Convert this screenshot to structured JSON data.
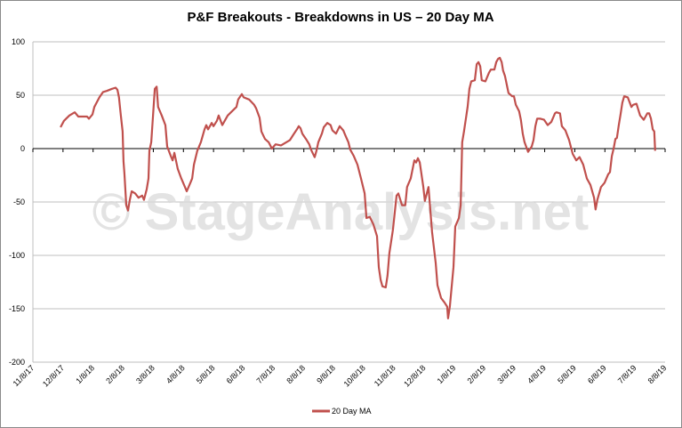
{
  "chart_data": {
    "type": "line",
    "title": "P&F Breakouts - Breakdowns in US – 20 Day MA",
    "xlabel": "",
    "ylabel": "",
    "ylim": [
      -200,
      100
    ],
    "yticks": [
      100,
      50,
      0,
      -50,
      -100,
      -150,
      -200
    ],
    "ytick_labels": [
      "100",
      "50",
      "0",
      "-50",
      "-100",
      "-150",
      "-200"
    ],
    "xtick_labels": [
      "11/8/17",
      "12/8/17",
      "1/8/18",
      "2/8/18",
      "3/8/18",
      "4/8/18",
      "5/8/18",
      "6/8/18",
      "7/8/18",
      "8/8/18",
      "9/8/18",
      "10/8/18",
      "11/8/18",
      "12/8/18",
      "1/8/19",
      "2/8/19",
      "3/8/19",
      "4/8/19",
      "5/8/19",
      "6/8/19",
      "7/8/19",
      "8/8/19"
    ],
    "x_unit": "months since 11/8/17",
    "grid": true,
    "legend_position": "bottom",
    "series": [
      {
        "name": "20 Day MA",
        "color": "#c0504d",
        "points": [
          [
            0.92,
            20
          ],
          [
            1.03,
            26
          ],
          [
            1.21,
            31
          ],
          [
            1.39,
            34
          ],
          [
            1.51,
            30
          ],
          [
            1.8,
            30
          ],
          [
            1.86,
            28
          ],
          [
            1.98,
            32
          ],
          [
            2.04,
            39
          ],
          [
            2.21,
            48
          ],
          [
            2.33,
            53
          ],
          [
            2.45,
            54
          ],
          [
            2.63,
            56
          ],
          [
            2.75,
            57
          ],
          [
            2.81,
            55
          ],
          [
            2.86,
            48
          ],
          [
            2.92,
            31
          ],
          [
            2.98,
            16
          ],
          [
            3.01,
            -12
          ],
          [
            3.04,
            -23
          ],
          [
            3.1,
            -53
          ],
          [
            3.16,
            -58
          ],
          [
            3.22,
            -48
          ],
          [
            3.28,
            -40
          ],
          [
            3.4,
            -42
          ],
          [
            3.51,
            -46
          ],
          [
            3.63,
            -44
          ],
          [
            3.69,
            -48
          ],
          [
            3.78,
            -38
          ],
          [
            3.84,
            -28
          ],
          [
            3.87,
            -2
          ],
          [
            3.93,
            6
          ],
          [
            3.99,
            31
          ],
          [
            4.05,
            56
          ],
          [
            4.11,
            58
          ],
          [
            4.16,
            39
          ],
          [
            4.28,
            31
          ],
          [
            4.4,
            22
          ],
          [
            4.46,
            2
          ],
          [
            4.58,
            -7
          ],
          [
            4.64,
            -11
          ],
          [
            4.7,
            -4
          ],
          [
            4.81,
            -19
          ],
          [
            4.93,
            -28
          ],
          [
            5.05,
            -36
          ],
          [
            5.11,
            -40
          ],
          [
            5.23,
            -32
          ],
          [
            5.29,
            -28
          ],
          [
            5.35,
            -15
          ],
          [
            5.46,
            -2
          ],
          [
            5.58,
            6
          ],
          [
            5.7,
            18
          ],
          [
            5.76,
            22
          ],
          [
            5.82,
            18
          ],
          [
            5.94,
            24
          ],
          [
            6.0,
            21
          ],
          [
            6.11,
            26
          ],
          [
            6.17,
            31
          ],
          [
            6.29,
            22
          ],
          [
            6.47,
            31
          ],
          [
            6.65,
            36
          ],
          [
            6.76,
            39
          ],
          [
            6.82,
            46
          ],
          [
            6.94,
            51
          ],
          [
            7.0,
            48
          ],
          [
            7.18,
            46
          ],
          [
            7.35,
            41
          ],
          [
            7.41,
            38
          ],
          [
            7.53,
            29
          ],
          [
            7.59,
            16
          ],
          [
            7.71,
            9
          ],
          [
            7.83,
            6
          ],
          [
            7.94,
            0
          ],
          [
            8.06,
            4
          ],
          [
            8.24,
            3
          ],
          [
            8.42,
            6
          ],
          [
            8.54,
            8
          ],
          [
            8.65,
            13
          ],
          [
            8.77,
            18
          ],
          [
            8.83,
            21
          ],
          [
            8.89,
            19
          ],
          [
            8.95,
            14
          ],
          [
            9.07,
            9
          ],
          [
            9.18,
            4
          ],
          [
            9.24,
            -1
          ],
          [
            9.36,
            -8
          ],
          [
            9.42,
            -2
          ],
          [
            9.48,
            6
          ],
          [
            9.6,
            14
          ],
          [
            9.66,
            20
          ],
          [
            9.78,
            24
          ],
          [
            9.89,
            22
          ],
          [
            9.95,
            17
          ],
          [
            10.07,
            14
          ],
          [
            10.19,
            21
          ],
          [
            10.31,
            17
          ],
          [
            10.37,
            13
          ],
          [
            10.48,
            6
          ],
          [
            10.54,
            -1
          ],
          [
            10.66,
            -7
          ],
          [
            10.78,
            -15
          ],
          [
            10.9,
            -28
          ],
          [
            11.02,
            -42
          ],
          [
            11.08,
            -65
          ],
          [
            11.19,
            -64
          ],
          [
            11.31,
            -71
          ],
          [
            11.43,
            -82
          ],
          [
            11.49,
            -111
          ],
          [
            11.55,
            -123
          ],
          [
            11.61,
            -129
          ],
          [
            11.72,
            -130
          ],
          [
            11.78,
            -119
          ],
          [
            11.84,
            -98
          ],
          [
            11.96,
            -76
          ],
          [
            12.08,
            -44
          ],
          [
            12.14,
            -42
          ],
          [
            12.26,
            -53
          ],
          [
            12.37,
            -53
          ],
          [
            12.43,
            -36
          ],
          [
            12.55,
            -28
          ],
          [
            12.67,
            -11
          ],
          [
            12.73,
            -13
          ],
          [
            12.79,
            -9
          ],
          [
            12.85,
            -13
          ],
          [
            12.97,
            -36
          ],
          [
            13.02,
            -49
          ],
          [
            13.14,
            -36
          ],
          [
            13.26,
            -78
          ],
          [
            13.38,
            -107
          ],
          [
            13.44,
            -128
          ],
          [
            13.56,
            -140
          ],
          [
            13.67,
            -144
          ],
          [
            13.76,
            -148
          ],
          [
            13.79,
            -159
          ],
          [
            13.85,
            -148
          ],
          [
            13.97,
            -111
          ],
          [
            14.03,
            -73
          ],
          [
            14.15,
            -65
          ],
          [
            14.21,
            -53
          ],
          [
            14.26,
            6
          ],
          [
            14.32,
            16
          ],
          [
            14.44,
            39
          ],
          [
            14.5,
            56
          ],
          [
            14.56,
            63
          ],
          [
            14.68,
            64
          ],
          [
            14.74,
            79
          ],
          [
            14.8,
            81
          ],
          [
            14.86,
            77
          ],
          [
            14.91,
            64
          ],
          [
            15.03,
            63
          ],
          [
            15.15,
            71
          ],
          [
            15.21,
            74
          ],
          [
            15.33,
            74
          ],
          [
            15.39,
            81
          ],
          [
            15.45,
            84
          ],
          [
            15.51,
            85
          ],
          [
            15.57,
            81
          ],
          [
            15.62,
            73
          ],
          [
            15.68,
            68
          ],
          [
            15.8,
            52
          ],
          [
            15.92,
            49
          ],
          [
            15.98,
            49
          ],
          [
            16.04,
            41
          ],
          [
            16.15,
            35
          ],
          [
            16.21,
            27
          ],
          [
            16.27,
            14
          ],
          [
            16.33,
            6
          ],
          [
            16.45,
            -3
          ],
          [
            16.57,
            2
          ],
          [
            16.63,
            8
          ],
          [
            16.69,
            21
          ],
          [
            16.75,
            28
          ],
          [
            16.86,
            28
          ],
          [
            16.98,
            27
          ],
          [
            17.1,
            22
          ],
          [
            17.22,
            25
          ],
          [
            17.28,
            29
          ],
          [
            17.34,
            33
          ],
          [
            17.39,
            34
          ],
          [
            17.51,
            33
          ],
          [
            17.57,
            21
          ],
          [
            17.69,
            17
          ],
          [
            17.81,
            8
          ],
          [
            17.93,
            -5
          ],
          [
            18.05,
            -11
          ],
          [
            18.16,
            -8
          ],
          [
            18.28,
            -15
          ],
          [
            18.4,
            -28
          ],
          [
            18.52,
            -34
          ],
          [
            18.64,
            -46
          ],
          [
            18.69,
            -57
          ],
          [
            18.75,
            -48
          ],
          [
            18.87,
            -36
          ],
          [
            18.99,
            -32
          ],
          [
            19.11,
            -24
          ],
          [
            19.17,
            -22
          ],
          [
            19.23,
            -7
          ],
          [
            19.29,
            0
          ],
          [
            19.35,
            9
          ],
          [
            19.4,
            10
          ],
          [
            19.46,
            22
          ],
          [
            19.52,
            32
          ],
          [
            19.58,
            43
          ],
          [
            19.64,
            49
          ],
          [
            19.76,
            48
          ],
          [
            19.88,
            39
          ],
          [
            19.94,
            41
          ],
          [
            20.05,
            42
          ],
          [
            20.17,
            31
          ],
          [
            20.29,
            27
          ],
          [
            20.41,
            33
          ],
          [
            20.47,
            33
          ],
          [
            20.53,
            28
          ],
          [
            20.59,
            18
          ],
          [
            20.64,
            16
          ],
          [
            20.67,
            -2
          ]
        ]
      }
    ],
    "watermark": "© StageAnalysis.net"
  }
}
